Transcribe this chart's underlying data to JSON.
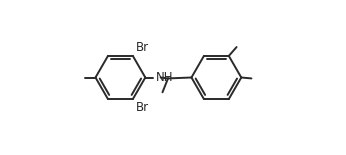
{
  "bg_color": "#ffffff",
  "line_color": "#2a2a2a",
  "text_color": "#2a2a2a",
  "lw": 1.4,
  "fs_label": 8.5,
  "fs_small": 7.5,
  "figsize": [
    3.46,
    1.55
  ],
  "dpi": 100,
  "xlim": [
    0.02,
    0.98
  ],
  "ylim": [
    0.08,
    0.92
  ]
}
